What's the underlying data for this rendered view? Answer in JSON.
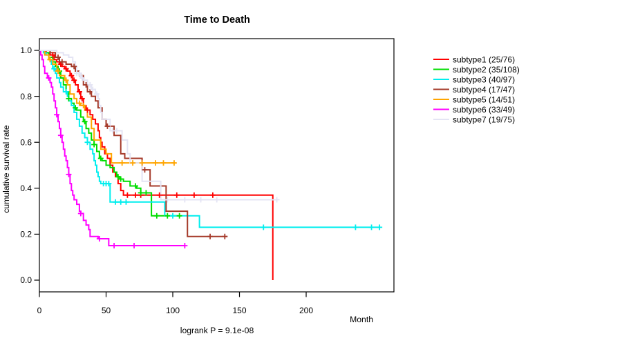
{
  "chart_data": {
    "type": "line",
    "variant": "kaplan-meier-step",
    "title": "Time to Death",
    "xlabel": "Month",
    "ylabel": "cumulative survival rate",
    "annotation": "logrank P = 9.1e-08",
    "x_ticks": [
      0,
      50,
      100,
      150,
      200
    ],
    "x_tick_labels": [
      "0",
      "50",
      "100",
      "150",
      "200"
    ],
    "y_ticks": [
      0.0,
      0.2,
      0.4,
      0.6,
      0.8,
      1.0
    ],
    "y_tick_labels": [
      "0.0",
      "0.2",
      "0.4",
      "0.6",
      "0.8",
      "1.0"
    ],
    "xlim": [
      0,
      266
    ],
    "ylim": [
      -0.05,
      1.05
    ],
    "grid": false,
    "background": "#ffffff",
    "axis_color": "#000000",
    "legend_position": "right",
    "series": [
      {
        "name": "subtype1",
        "label": "subtype1 (25/76)",
        "color": "#ff0000",
        "end_month": 175,
        "points": [
          [
            0,
            1
          ],
          [
            5,
            0.99
          ],
          [
            8,
            0.98
          ],
          [
            11,
            0.96
          ],
          [
            13,
            0.95
          ],
          [
            15,
            0.94
          ],
          [
            17,
            0.93
          ],
          [
            19,
            0.92
          ],
          [
            21,
            0.91
          ],
          [
            23,
            0.89
          ],
          [
            25,
            0.87
          ],
          [
            27,
            0.85
          ],
          [
            29,
            0.82
          ],
          [
            31,
            0.79
          ],
          [
            33,
            0.76
          ],
          [
            35,
            0.74
          ],
          [
            38,
            0.72
          ],
          [
            40,
            0.7
          ],
          [
            42,
            0.68
          ],
          [
            44,
            0.65
          ],
          [
            45,
            0.62
          ],
          [
            46,
            0.6
          ],
          [
            47,
            0.58
          ],
          [
            49,
            0.55
          ],
          [
            51,
            0.53
          ],
          [
            53,
            0.5
          ],
          [
            55,
            0.47
          ],
          [
            57,
            0.45
          ],
          [
            59,
            0.42
          ],
          [
            61,
            0.39
          ],
          [
            63,
            0.37
          ],
          [
            175,
            0
          ]
        ],
        "censor_months": [
          10,
          16,
          20,
          24,
          26,
          30,
          32,
          36,
          66,
          72,
          76,
          90,
          103,
          116,
          130
        ]
      },
      {
        "name": "subtype2",
        "label": "subtype2 (35/108)",
        "color": "#00dd00",
        "end_month": 106,
        "points": [
          [
            0,
            1
          ],
          [
            4,
            0.99
          ],
          [
            7,
            0.97
          ],
          [
            10,
            0.95
          ],
          [
            12,
            0.93
          ],
          [
            14,
            0.91
          ],
          [
            16,
            0.88
          ],
          [
            18,
            0.85
          ],
          [
            20,
            0.82
          ],
          [
            22,
            0.79
          ],
          [
            24,
            0.77
          ],
          [
            26,
            0.75
          ],
          [
            28,
            0.74
          ],
          [
            31,
            0.71
          ],
          [
            33,
            0.69
          ],
          [
            35,
            0.66
          ],
          [
            37,
            0.64
          ],
          [
            39,
            0.61
          ],
          [
            41,
            0.59
          ],
          [
            43,
            0.56
          ],
          [
            45,
            0.53
          ],
          [
            47,
            0.52
          ],
          [
            50,
            0.5
          ],
          [
            53,
            0.49
          ],
          [
            56,
            0.47
          ],
          [
            58,
            0.45
          ],
          [
            60,
            0.44
          ],
          [
            63,
            0.43
          ],
          [
            68,
            0.41
          ],
          [
            73,
            0.4
          ],
          [
            76,
            0.38
          ],
          [
            84,
            0.28
          ]
        ],
        "censor_months": [
          15,
          22,
          27,
          34,
          41,
          46,
          59,
          61,
          72,
          76,
          80,
          88,
          96,
          105
        ]
      },
      {
        "name": "subtype3",
        "label": "subtype3 (40/97)",
        "color": "#00eeee",
        "end_month": 255,
        "points": [
          [
            0,
            1
          ],
          [
            3,
            0.99
          ],
          [
            5,
            0.98
          ],
          [
            7,
            0.96
          ],
          [
            9,
            0.94
          ],
          [
            10,
            0.92
          ],
          [
            12,
            0.9
          ],
          [
            13,
            0.88
          ],
          [
            15,
            0.86
          ],
          [
            16,
            0.84
          ],
          [
            18,
            0.82
          ],
          [
            21,
            0.8
          ],
          [
            22,
            0.78
          ],
          [
            24,
            0.76
          ],
          [
            26,
            0.73
          ],
          [
            28,
            0.7
          ],
          [
            30,
            0.67
          ],
          [
            32,
            0.64
          ],
          [
            34,
            0.62
          ],
          [
            36,
            0.6
          ],
          [
            38,
            0.57
          ],
          [
            40,
            0.55
          ],
          [
            41,
            0.52
          ],
          [
            42,
            0.5
          ],
          [
            43,
            0.47
          ],
          [
            44,
            0.45
          ],
          [
            45,
            0.43
          ],
          [
            46,
            0.42
          ],
          [
            53,
            0.34
          ],
          [
            94,
            0.28
          ],
          [
            120,
            0.23
          ]
        ],
        "censor_months": [
          11,
          20,
          36,
          48,
          50,
          52,
          57,
          61,
          65,
          100,
          168,
          237,
          249,
          255
        ]
      },
      {
        "name": "subtype4",
        "label": "subtype4 (17/47)",
        "color": "#a53a2a",
        "end_month": 141,
        "points": [
          [
            0,
            1
          ],
          [
            8,
            0.99
          ],
          [
            12,
            0.97
          ],
          [
            15,
            0.95
          ],
          [
            20,
            0.94
          ],
          [
            24,
            0.93
          ],
          [
            27,
            0.91
          ],
          [
            30,
            0.89
          ],
          [
            33,
            0.85
          ],
          [
            36,
            0.82
          ],
          [
            39,
            0.8
          ],
          [
            42,
            0.78
          ],
          [
            44,
            0.75
          ],
          [
            47,
            0.7
          ],
          [
            50,
            0.67
          ],
          [
            56,
            0.63
          ],
          [
            61,
            0.55
          ],
          [
            64,
            0.53
          ],
          [
            77,
            0.48
          ],
          [
            83,
            0.41
          ],
          [
            95,
            0.3
          ],
          [
            111,
            0.19
          ]
        ],
        "censor_months": [
          14,
          17,
          26,
          35,
          38,
          51,
          79,
          128,
          139
        ]
      },
      {
        "name": "subtype5",
        "label": "subtype5 (14/51)",
        "color": "#ffa500",
        "end_month": 102,
        "points": [
          [
            0,
            1
          ],
          [
            4,
            0.98
          ],
          [
            7,
            0.96
          ],
          [
            10,
            0.94
          ],
          [
            13,
            0.91
          ],
          [
            15,
            0.89
          ],
          [
            19,
            0.87
          ],
          [
            21,
            0.85
          ],
          [
            23,
            0.81
          ],
          [
            26,
            0.79
          ],
          [
            28,
            0.77
          ],
          [
            31,
            0.76
          ],
          [
            34,
            0.74
          ],
          [
            36,
            0.71
          ],
          [
            39,
            0.66
          ],
          [
            41,
            0.61
          ],
          [
            46,
            0.57
          ],
          [
            50,
            0.55
          ],
          [
            54,
            0.51
          ]
        ],
        "censor_months": [
          8,
          14,
          20,
          30,
          33,
          62,
          70,
          77,
          87,
          93,
          101
        ]
      },
      {
        "name": "subtype6",
        "label": "subtype6 (33/49)",
        "color": "#ff00ff",
        "end_month": 109,
        "points": [
          [
            0,
            1
          ],
          [
            1,
            0.98
          ],
          [
            2,
            0.96
          ],
          [
            3,
            0.93
          ],
          [
            4,
            0.9
          ],
          [
            6,
            0.88
          ],
          [
            8,
            0.86
          ],
          [
            9,
            0.84
          ],
          [
            10,
            0.81
          ],
          [
            11,
            0.78
          ],
          [
            12,
            0.75
          ],
          [
            13,
            0.72
          ],
          [
            14,
            0.69
          ],
          [
            15,
            0.66
          ],
          [
            16,
            0.63
          ],
          [
            17,
            0.6
          ],
          [
            18,
            0.57
          ],
          [
            19,
            0.54
          ],
          [
            20,
            0.52
          ],
          [
            21,
            0.49
          ],
          [
            22,
            0.46
          ],
          [
            23,
            0.42
          ],
          [
            24,
            0.39
          ],
          [
            25,
            0.37
          ],
          [
            26,
            0.35
          ],
          [
            28,
            0.33
          ],
          [
            30,
            0.3
          ],
          [
            31,
            0.29
          ],
          [
            33,
            0.26
          ],
          [
            35,
            0.24
          ],
          [
            37,
            0.22
          ],
          [
            38,
            0.19
          ],
          [
            44,
            0.18
          ],
          [
            52,
            0.15
          ]
        ],
        "censor_months": [
          7,
          13,
          16,
          22,
          31,
          45,
          56,
          71,
          109
        ]
      },
      {
        "name": "subtype7",
        "label": "subtype7 (19/75)",
        "color": "#e4e4f4",
        "end_month": 178,
        "points": [
          [
            0,
            1
          ],
          [
            13,
            0.99
          ],
          [
            18,
            0.98
          ],
          [
            22,
            0.97
          ],
          [
            25,
            0.95
          ],
          [
            27,
            0.93
          ],
          [
            28,
            0.9
          ],
          [
            31,
            0.88
          ],
          [
            33,
            0.87
          ],
          [
            36,
            0.85
          ],
          [
            39,
            0.83
          ],
          [
            42,
            0.81
          ],
          [
            44,
            0.79
          ],
          [
            45,
            0.76
          ],
          [
            46,
            0.73
          ],
          [
            47,
            0.7
          ],
          [
            53,
            0.65
          ],
          [
            62,
            0.61
          ],
          [
            66,
            0.55
          ],
          [
            68,
            0.51
          ],
          [
            77,
            0.43
          ],
          [
            91,
            0.35
          ]
        ],
        "censor_months": [
          28,
          30,
          32,
          38,
          40,
          43,
          55,
          58,
          96,
          109,
          121,
          133,
          178
        ]
      }
    ]
  }
}
